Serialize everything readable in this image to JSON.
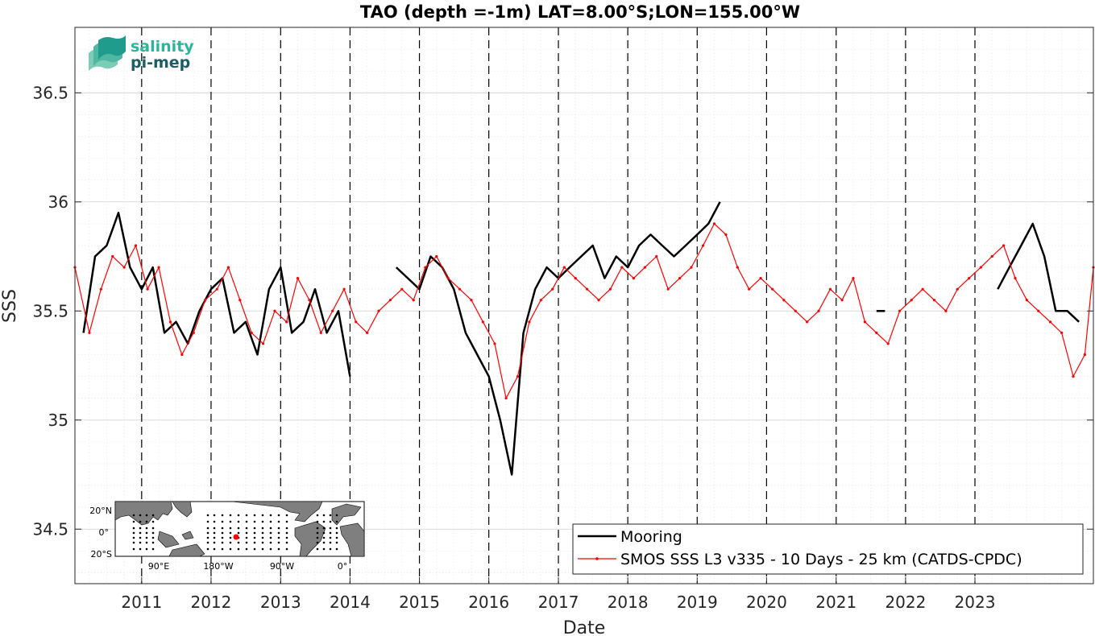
{
  "chart_data": {
    "type": "line",
    "title": "TAO (depth =-1m) LAT=8.00°S;LON=155.00°W",
    "xlabel": "Date",
    "ylabel": "SSS",
    "x_start": "2010-01-15",
    "x_end": "2024-09-15",
    "ylim": [
      34.25,
      36.8
    ],
    "y_ticks": [
      34.5,
      35,
      35.5,
      36,
      36.5
    ],
    "y_tick_labels": [
      "34.5",
      "35",
      "35.5",
      "36",
      "36.5"
    ],
    "x_ticks": [
      "2011-01-01",
      "2012-01-01",
      "2013-01-01",
      "2014-01-01",
      "2015-01-01",
      "2016-01-01",
      "2017-01-01",
      "2018-01-01",
      "2019-01-01",
      "2020-01-01",
      "2021-01-01",
      "2022-01-01",
      "2023-01-01"
    ],
    "x_tick_labels": [
      "2011",
      "2012",
      "2013",
      "2014",
      "2015",
      "2016",
      "2017",
      "2018",
      "2019",
      "2020",
      "2021",
      "2022",
      "2023"
    ],
    "grid": true,
    "year_boundaries_dashed": true,
    "legend_position": "bottom-right",
    "colors": {
      "mooring": "#000000",
      "smos": "#ff0000"
    },
    "series": [
      {
        "name": "Mooring",
        "x": [
          "2010-03-01",
          "2010-05-01",
          "2010-07-01",
          "2010-09-01",
          "2010-11-01",
          "2011-01-01",
          "2011-03-01",
          "2011-05-01",
          "2011-07-01",
          "2011-09-01",
          "2011-11-01",
          "2012-01-01",
          "2012-03-01",
          "2012-05-01",
          "2012-07-01",
          "2012-09-01",
          "2012-11-01",
          "2013-01-01",
          "2013-03-01",
          "2013-05-01",
          "2013-07-01",
          "2013-09-01",
          "2013-11-01",
          "2014-01-01",
          null,
          "2014-09-01",
          "2014-11-01",
          "2015-01-01",
          "2015-03-01",
          "2015-05-01",
          "2015-07-01",
          "2015-09-01",
          "2015-11-01",
          "2016-01-01",
          "2016-03-01",
          "2016-05-01",
          "2016-07-01",
          "2016-09-01",
          "2016-11-01",
          "2017-01-01",
          "2017-03-01",
          "2017-05-01",
          "2017-07-01",
          "2017-09-01",
          "2017-11-01",
          "2018-01-01",
          "2018-03-01",
          "2018-05-01",
          "2018-07-01",
          "2018-09-01",
          "2018-11-01",
          "2019-01-01",
          "2019-03-01",
          "2019-05-01",
          null,
          "2021-08-01",
          "2021-09-15",
          null,
          "2023-05-01",
          "2023-07-01",
          "2023-09-01",
          "2023-11-01",
          "2024-01-01",
          "2024-03-01",
          "2024-05-01",
          "2024-07-01"
        ],
        "values": [
          35.4,
          35.75,
          35.8,
          35.95,
          35.7,
          35.6,
          35.7,
          35.4,
          35.45,
          35.35,
          35.5,
          35.6,
          35.65,
          35.4,
          35.45,
          35.3,
          35.6,
          35.7,
          35.4,
          35.45,
          35.6,
          35.4,
          35.5,
          35.2,
          null,
          35.7,
          35.65,
          35.6,
          35.75,
          35.7,
          35.6,
          35.4,
          35.3,
          35.2,
          35.0,
          34.75,
          35.4,
          35.6,
          35.7,
          35.65,
          35.7,
          35.75,
          35.8,
          35.65,
          35.75,
          35.7,
          35.8,
          35.85,
          35.8,
          35.75,
          35.8,
          35.85,
          35.9,
          36.0,
          null,
          35.5,
          35.5,
          null,
          35.6,
          35.7,
          35.8,
          35.9,
          35.75,
          35.5,
          35.5,
          35.45
        ]
      },
      {
        "name": "SMOS SSS L3 v335 - 10 Days - 25 km (CATDS-CPDC)",
        "x": [
          "2010-01-15",
          "2010-04-01",
          "2010-06-01",
          "2010-08-01",
          "2010-10-01",
          "2010-12-01",
          "2011-02-01",
          "2011-04-01",
          "2011-06-01",
          "2011-08-01",
          "2011-10-01",
          "2011-12-01",
          "2012-02-01",
          "2012-04-01",
          "2012-06-01",
          "2012-08-01",
          "2012-10-01",
          "2012-12-01",
          "2013-02-01",
          "2013-04-01",
          "2013-06-01",
          "2013-08-01",
          "2013-10-01",
          "2013-12-01",
          "2014-02-01",
          "2014-04-01",
          "2014-06-01",
          "2014-08-01",
          "2014-10-01",
          "2014-12-01",
          "2015-02-01",
          "2015-04-01",
          "2015-06-01",
          "2015-08-01",
          "2015-10-01",
          "2015-12-01",
          "2016-02-01",
          "2016-04-01",
          "2016-06-01",
          "2016-08-01",
          "2016-10-01",
          "2016-12-01",
          "2017-02-01",
          "2017-04-01",
          "2017-06-01",
          "2017-08-01",
          "2017-10-01",
          "2017-12-01",
          "2018-02-01",
          "2018-04-01",
          "2018-06-01",
          "2018-08-01",
          "2018-10-01",
          "2018-12-01",
          "2019-02-01",
          "2019-04-01",
          "2019-06-01",
          "2019-08-01",
          "2019-10-01",
          "2019-12-01",
          "2020-02-01",
          "2020-04-01",
          "2020-06-01",
          "2020-08-01",
          "2020-10-01",
          "2020-12-01",
          "2021-02-01",
          "2021-04-01",
          "2021-06-01",
          "2021-08-01",
          "2021-10-01",
          "2021-12-01",
          "2022-02-01",
          "2022-04-01",
          "2022-06-01",
          "2022-08-01",
          "2022-10-01",
          "2022-12-01",
          "2023-02-01",
          "2023-04-01",
          "2023-06-01",
          "2023-08-01",
          "2023-10-01",
          "2023-12-01",
          "2024-02-01",
          "2024-04-01",
          "2024-06-01",
          "2024-08-01",
          "2024-09-15"
        ],
        "values": [
          35.7,
          35.4,
          35.6,
          35.75,
          35.7,
          35.8,
          35.6,
          35.7,
          35.45,
          35.3,
          35.4,
          35.55,
          35.6,
          35.7,
          35.55,
          35.4,
          35.35,
          35.5,
          35.45,
          35.65,
          35.55,
          35.4,
          35.5,
          35.6,
          35.45,
          35.4,
          35.5,
          35.55,
          35.6,
          35.55,
          35.7,
          35.75,
          35.65,
          35.6,
          35.55,
          35.45,
          35.35,
          35.1,
          35.2,
          35.45,
          35.55,
          35.6,
          35.7,
          35.65,
          35.6,
          35.55,
          35.6,
          35.7,
          35.65,
          35.7,
          35.75,
          35.6,
          35.65,
          35.7,
          35.8,
          35.9,
          35.85,
          35.7,
          35.6,
          35.65,
          35.6,
          35.55,
          35.5,
          35.45,
          35.5,
          35.6,
          35.55,
          35.65,
          35.45,
          35.4,
          35.35,
          35.5,
          35.55,
          35.6,
          35.55,
          35.5,
          35.6,
          35.65,
          35.7,
          35.75,
          35.8,
          35.65,
          35.55,
          35.5,
          35.45,
          35.4,
          35.2,
          35.3,
          35.7
        ]
      }
    ],
    "inset_map": {
      "lat_labels": [
        "20°N",
        "0°",
        "20°S"
      ],
      "lon_labels": [
        "90°E",
        "180°W",
        "90°W",
        "0°"
      ]
    }
  },
  "logo": {
    "line1": "salinity",
    "line2": "pi-mep"
  }
}
